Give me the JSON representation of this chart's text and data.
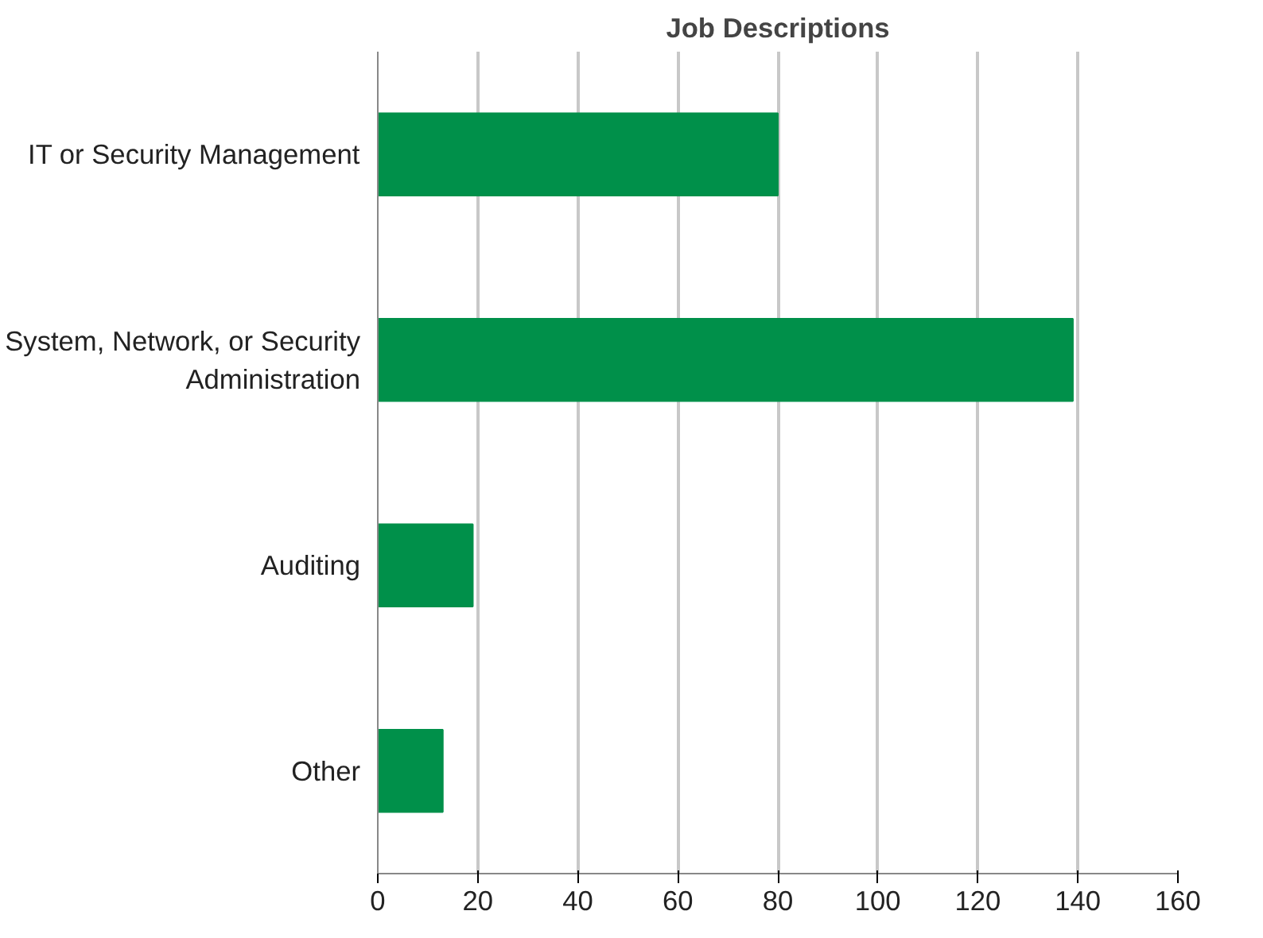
{
  "chart_data": {
    "type": "bar",
    "orientation": "horizontal",
    "title": "Job Descriptions",
    "categories": [
      "IT or Security Management",
      "System, Network, or Security Administration",
      "Auditing",
      "Other"
    ],
    "values": [
      80,
      139,
      19,
      13
    ],
    "color": "#00904a",
    "xlim": [
      0,
      160
    ],
    "xticks": [
      0,
      20,
      40,
      60,
      80,
      100,
      120,
      140,
      160
    ],
    "grid": "x"
  }
}
